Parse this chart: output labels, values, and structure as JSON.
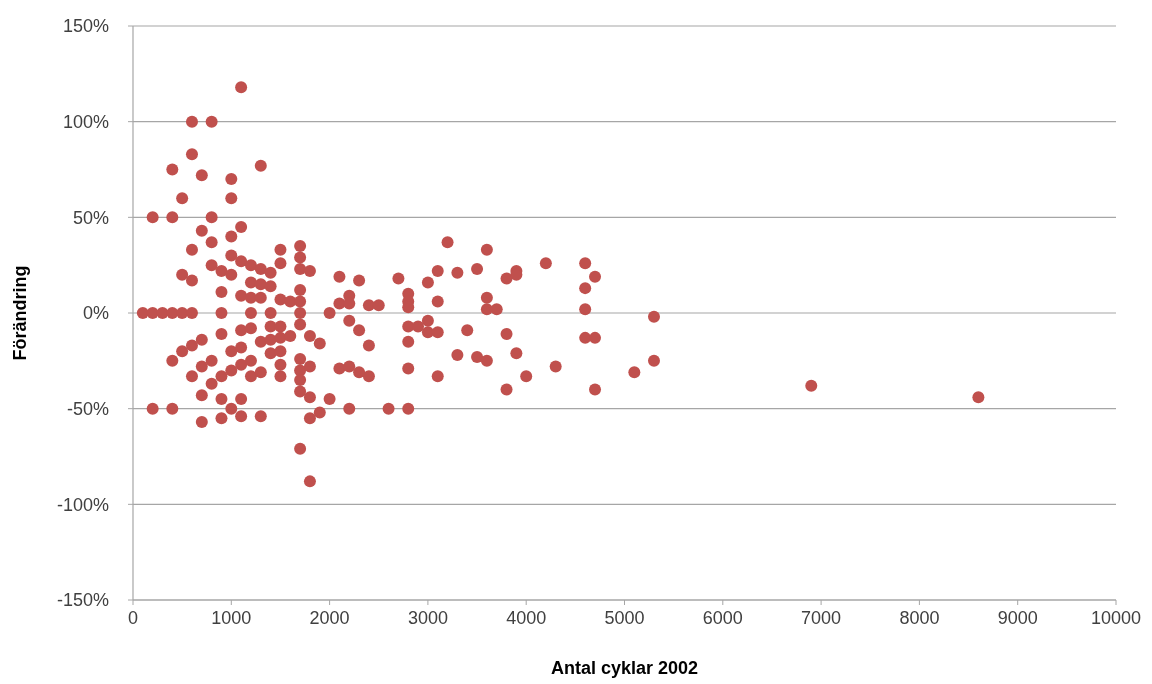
{
  "chart_data": {
    "type": "scatter",
    "xlabel": "Antal cyklar 2002",
    "ylabel": "Förändring",
    "x": [
      100,
      200,
      200,
      200,
      300,
      400,
      400,
      400,
      400,
      400,
      500,
      500,
      500,
      500,
      600,
      600,
      600,
      600,
      600,
      600,
      600,
      700,
      700,
      700,
      700,
      700,
      700,
      800,
      800,
      800,
      800,
      800,
      800,
      900,
      900,
      900,
      900,
      900,
      900,
      900,
      1000,
      1000,
      1000,
      1000,
      1000,
      1000,
      1000,
      1000,
      1100,
      1100,
      1100,
      1100,
      1100,
      1100,
      1100,
      1100,
      1100,
      1200,
      1200,
      1200,
      1200,
      1200,
      1200,
      1200,
      1300,
      1300,
      1300,
      1300,
      1300,
      1300,
      1300,
      1400,
      1400,
      1400,
      1400,
      1400,
      1400,
      1500,
      1500,
      1500,
      1500,
      1500,
      1500,
      1500,
      1500,
      1600,
      1600,
      1700,
      1700,
      1700,
      1700,
      1700,
      1700,
      1700,
      1700,
      1700,
      1700,
      1700,
      1700,
      1800,
      1800,
      1800,
      1800,
      1800,
      1800,
      1900,
      1900,
      2000,
      2000,
      2100,
      2100,
      2100,
      2200,
      2200,
      2200,
      2200,
      2200,
      2300,
      2300,
      2300,
      2400,
      2400,
      2400,
      2500,
      2600,
      2700,
      2800,
      2800,
      2800,
      2800,
      2800,
      2800,
      2800,
      2900,
      3000,
      3000,
      3000,
      3100,
      3100,
      3100,
      3100,
      3200,
      3300,
      3300,
      3400,
      3500,
      3500,
      3600,
      3600,
      3600,
      3600,
      3700,
      3800,
      3800,
      3800,
      3900,
      3900,
      3900,
      4000,
      4200,
      4300,
      4600,
      4600,
      4600,
      4600,
      4700,
      4700,
      4700,
      5100,
      5300,
      5300,
      6900,
      8600
    ],
    "values": [
      0,
      50,
      0,
      -50,
      0,
      75,
      50,
      0,
      -25,
      -50,
      60,
      20,
      0,
      -20,
      100,
      83,
      33,
      17,
      0,
      -17,
      -33,
      72,
      43,
      -14,
      -28,
      -43,
      -57,
      100,
      50,
      37,
      25,
      -25,
      -37,
      22,
      11,
      0,
      -11,
      -33,
      -45,
      -55,
      70,
      60,
      40,
      30,
      20,
      -20,
      -30,
      -50,
      118,
      45,
      27,
      9,
      -9,
      -18,
      -27,
      -45,
      -54,
      25,
      16,
      8,
      0,
      -8,
      -25,
      -33,
      77,
      23,
      15,
      8,
      -15,
      -31,
      -54,
      21,
      14,
      0,
      -7,
      -14,
      -21,
      33,
      26,
      7,
      -7,
      -13,
      -20,
      -27,
      -33,
      6,
      -12,
      35,
      29,
      23,
      12,
      6,
      0,
      -6,
      -24,
      -30,
      -35,
      -41,
      -71,
      22,
      -12,
      -28,
      -44,
      -55,
      -88,
      -16,
      -52,
      0,
      -45,
      19,
      5,
      -29,
      9,
      5,
      -4,
      -28,
      -50,
      17,
      -9,
      -31,
      4,
      -17,
      -33,
      4,
      -50,
      18,
      10,
      6,
      3,
      -7,
      -15,
      -29,
      -50,
      -7,
      16,
      -4,
      -10,
      22,
      6,
      -10,
      -33,
      37,
      21,
      -22,
      -9,
      23,
      -23,
      33,
      8,
      2,
      -25,
      2,
      18,
      -11,
      -40,
      22,
      20,
      -21,
      -33,
      26,
      -28,
      26,
      13,
      2,
      -13,
      19,
      -13,
      -40,
      -31,
      -2,
      -25,
      -38,
      -44
    ],
    "color": "#c0504d",
    "marker": "circle",
    "grid": "y",
    "xlim": [
      0,
      10000
    ],
    "xticks": [
      0,
      1000,
      2000,
      3000,
      4000,
      5000,
      6000,
      7000,
      8000,
      9000,
      10000
    ],
    "ylim": [
      -150,
      150
    ],
    "yticks": [
      {
        "value": -150,
        "label": "-150%"
      },
      {
        "value": -100,
        "label": "-100%"
      },
      {
        "value": -50,
        "label": "-50%"
      },
      {
        "value": 0,
        "label": "0%"
      },
      {
        "value": 50,
        "label": "50%"
      },
      {
        "value": 100,
        "label": "100%"
      },
      {
        "value": 150,
        "label": "150%"
      }
    ]
  }
}
